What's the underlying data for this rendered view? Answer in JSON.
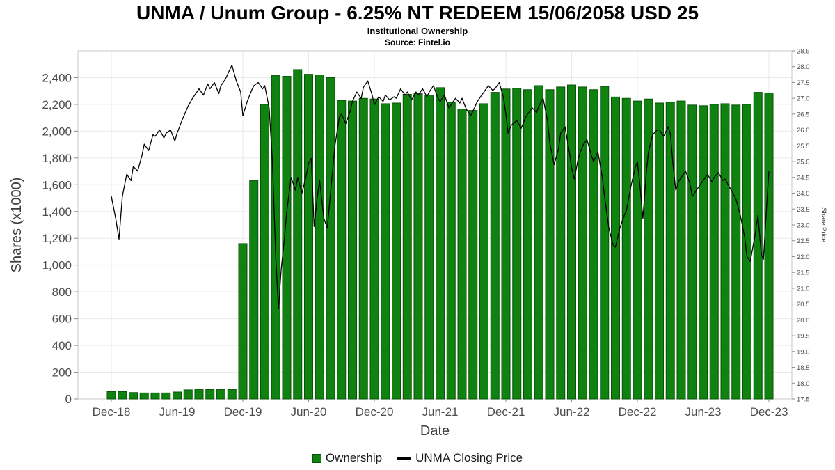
{
  "page": {
    "background": "#ffffff"
  },
  "chart_data": {
    "type": "combo",
    "title": "UNMA / Unum Group - 6.25% NT REDEEM 15/06/2058 USD 25",
    "subtitle": "Institutional Ownership",
    "source": "Source: Fintel.io",
    "grid": true,
    "legend_position": "bottom",
    "colors": {
      "bar_fill": "#0f8210",
      "bar_border": "#0a520a",
      "line": "#000000",
      "grid": "#e9e9e9",
      "plot_border": "#c9c9c9",
      "tick": "#8c8c8c",
      "tick_text": "#4d4d4d",
      "axis_title": "#3d3d3d"
    },
    "x_axis": {
      "label": "Date",
      "tick_indices": [
        0,
        6,
        12,
        18,
        24,
        30,
        36,
        42,
        48,
        54,
        60
      ],
      "tick_labels": [
        "Dec-18",
        "Jun-19",
        "Dec-19",
        "Jun-20",
        "Dec-20",
        "Jun-21",
        "Dec-21",
        "Jun-22",
        "Dec-22",
        "Jun-23",
        "Dec-23"
      ]
    },
    "left_axis": {
      "label": "Shares (x1000)",
      "range": [
        0,
        2600
      ],
      "ticks": [
        0,
        200,
        400,
        600,
        800,
        1000,
        1200,
        1400,
        1600,
        1800,
        2000,
        2200,
        2400
      ],
      "tick_labels": [
        "0",
        "200",
        "400",
        "600",
        "800",
        "1,000",
        "1,200",
        "1,400",
        "1,600",
        "1,800",
        "2,000",
        "2,200",
        "2,400"
      ]
    },
    "right_axis": {
      "label": "Share Price",
      "range": [
        17.5,
        28.5
      ],
      "ticks": [
        17.5,
        18,
        18.5,
        19,
        19.5,
        20,
        20.5,
        21,
        21.5,
        22,
        22.5,
        23,
        23.5,
        24,
        24.5,
        25,
        25.5,
        26,
        26.5,
        27,
        27.5,
        28,
        28.5
      ],
      "tick_labels": [
        "17.5",
        "18.0",
        "18.5",
        "19.0",
        "19.5",
        "20.0",
        "20.5",
        "21.0",
        "21.5",
        "22.0",
        "22.5",
        "23.0",
        "23.5",
        "24.0",
        "24.5",
        "25.0",
        "25.5",
        "26.0",
        "26.5",
        "27.0",
        "27.5",
        "28.0",
        "28.5"
      ]
    },
    "categories": [
      "Dec-18",
      "Jan-19",
      "Feb-19",
      "Mar-19",
      "Apr-19",
      "May-19",
      "Jun-19",
      "Jul-19",
      "Aug-19",
      "Sep-19",
      "Oct-19",
      "Nov-19",
      "Dec-19",
      "Jan-20",
      "Feb-20",
      "Mar-20",
      "Apr-20",
      "May-20",
      "Jun-20",
      "Jul-20",
      "Aug-20",
      "Sep-20",
      "Oct-20",
      "Nov-20",
      "Dec-20",
      "Jan-21",
      "Feb-21",
      "Mar-21",
      "Apr-21",
      "May-21",
      "Jun-21",
      "Jul-21",
      "Aug-21",
      "Sep-21",
      "Oct-21",
      "Nov-21",
      "Dec-21",
      "Jan-22",
      "Feb-22",
      "Mar-22",
      "Apr-22",
      "May-22",
      "Jun-22",
      "Jul-22",
      "Aug-22",
      "Sep-22",
      "Oct-22",
      "Nov-22",
      "Dec-22",
      "Jan-23",
      "Feb-23",
      "Mar-23",
      "Apr-23",
      "May-23",
      "Jun-23",
      "Jul-23",
      "Aug-23",
      "Sep-23",
      "Oct-23",
      "Nov-23",
      "Dec-23"
    ],
    "series": [
      {
        "name": "Ownership",
        "type": "bar",
        "axis": "left",
        "unit": "shares_x1000",
        "values": [
          55,
          55,
          48,
          45,
          45,
          45,
          52,
          68,
          72,
          70,
          70,
          72,
          1160,
          1630,
          2200,
          2415,
          2410,
          2460,
          2425,
          2420,
          2400,
          2230,
          2225,
          2245,
          2240,
          2205,
          2210,
          2275,
          2280,
          2270,
          2325,
          2215,
          2165,
          2155,
          2205,
          2290,
          2315,
          2320,
          2310,
          2340,
          2310,
          2330,
          2345,
          2330,
          2310,
          2335,
          2255,
          2245,
          2225,
          2240,
          2210,
          2215,
          2225,
          2195,
          2190,
          2200,
          2205,
          2195,
          2200,
          2290,
          2285
        ]
      },
      {
        "name": "UNMA Closing Price",
        "type": "line",
        "axis": "right",
        "x_unit": "months_since_Dec-18",
        "points": [
          [
            0,
            23.9
          ],
          [
            0.4,
            23.2
          ],
          [
            0.7,
            22.55
          ],
          [
            1,
            23.9
          ],
          [
            1.4,
            24.6
          ],
          [
            1.8,
            24.4
          ],
          [
            2,
            24.85
          ],
          [
            2.4,
            24.7
          ],
          [
            2.8,
            25.2
          ],
          [
            3,
            25.55
          ],
          [
            3.4,
            25.35
          ],
          [
            3.8,
            25.85
          ],
          [
            4,
            25.8
          ],
          [
            4.4,
            26.0
          ],
          [
            4.8,
            25.75
          ],
          [
            5,
            25.9
          ],
          [
            5.4,
            26.0
          ],
          [
            5.8,
            25.65
          ],
          [
            6,
            25.9
          ],
          [
            6.5,
            26.35
          ],
          [
            7,
            26.75
          ],
          [
            7.4,
            27.0
          ],
          [
            7.8,
            27.2
          ],
          [
            8,
            27.3
          ],
          [
            8.4,
            27.1
          ],
          [
            8.8,
            27.45
          ],
          [
            9,
            27.3
          ],
          [
            9.4,
            27.5
          ],
          [
            9.8,
            27.15
          ],
          [
            10,
            27.4
          ],
          [
            10.4,
            27.6
          ],
          [
            10.8,
            27.9
          ],
          [
            11,
            28.05
          ],
          [
            11.4,
            27.55
          ],
          [
            11.8,
            27.2
          ],
          [
            12,
            26.45
          ],
          [
            12.4,
            26.9
          ],
          [
            12.8,
            27.25
          ],
          [
            13,
            27.4
          ],
          [
            13.4,
            27.5
          ],
          [
            13.8,
            27.3
          ],
          [
            14,
            27.4
          ],
          [
            14.4,
            26.7
          ],
          [
            14.7,
            25.0
          ],
          [
            15,
            22.0
          ],
          [
            15.25,
            20.35
          ],
          [
            15.5,
            21.6
          ],
          [
            15.8,
            22.6
          ],
          [
            16,
            23.4
          ],
          [
            16.4,
            24.5
          ],
          [
            16.8,
            24.1
          ],
          [
            17,
            24.5
          ],
          [
            17.4,
            24.0
          ],
          [
            17.8,
            24.6
          ],
          [
            18,
            24.95
          ],
          [
            18.25,
            25.1
          ],
          [
            18.5,
            22.95
          ],
          [
            18.8,
            23.9
          ],
          [
            19,
            24.4
          ],
          [
            19.4,
            23.2
          ],
          [
            19.7,
            22.9
          ],
          [
            20,
            24.0
          ],
          [
            20.4,
            25.5
          ],
          [
            20.8,
            26.4
          ],
          [
            21,
            26.5
          ],
          [
            21.4,
            26.2
          ],
          [
            21.8,
            26.6
          ],
          [
            22,
            26.9
          ],
          [
            22.4,
            27.2
          ],
          [
            22.8,
            27.0
          ],
          [
            23,
            27.35
          ],
          [
            23.4,
            27.55
          ],
          [
            23.8,
            27.1
          ],
          [
            24,
            26.8
          ],
          [
            24.4,
            27.05
          ],
          [
            24.8,
            26.9
          ],
          [
            25,
            27.1
          ],
          [
            25.4,
            26.95
          ],
          [
            25.8,
            27.05
          ],
          [
            26,
            27.0
          ],
          [
            26.4,
            27.3
          ],
          [
            26.8,
            27.1
          ],
          [
            27,
            27.2
          ],
          [
            27.4,
            26.95
          ],
          [
            27.8,
            27.2
          ],
          [
            28,
            27.1
          ],
          [
            28.4,
            27.3
          ],
          [
            28.8,
            27.05
          ],
          [
            29,
            27.2
          ],
          [
            29.4,
            27.4
          ],
          [
            29.8,
            27.0
          ],
          [
            30,
            26.9
          ],
          [
            30.4,
            27.1
          ],
          [
            30.8,
            26.7
          ],
          [
            31,
            26.8
          ],
          [
            31.4,
            27.0
          ],
          [
            31.8,
            26.85
          ],
          [
            32,
            27.0
          ],
          [
            32.4,
            26.65
          ],
          [
            32.8,
            26.45
          ],
          [
            33,
            26.6
          ],
          [
            33.4,
            26.9
          ],
          [
            33.8,
            27.1
          ],
          [
            34,
            27.2
          ],
          [
            34.4,
            27.4
          ],
          [
            34.8,
            27.25
          ],
          [
            35,
            27.3
          ],
          [
            35.4,
            27.5
          ],
          [
            35.8,
            27.0
          ],
          [
            36,
            26.5
          ],
          [
            36.2,
            25.9
          ],
          [
            36.5,
            26.15
          ],
          [
            37,
            26.3
          ],
          [
            37.4,
            26.05
          ],
          [
            37.8,
            26.4
          ],
          [
            38,
            26.5
          ],
          [
            38.4,
            26.7
          ],
          [
            38.8,
            26.55
          ],
          [
            39,
            26.75
          ],
          [
            39.4,
            27.0
          ],
          [
            39.8,
            26.3
          ],
          [
            40,
            25.6
          ],
          [
            40.4,
            24.9
          ],
          [
            40.8,
            25.4
          ],
          [
            41,
            25.9
          ],
          [
            41.4,
            26.1
          ],
          [
            41.8,
            25.3
          ],
          [
            42,
            24.8
          ],
          [
            42.25,
            24.45
          ],
          [
            42.6,
            25.1
          ],
          [
            43,
            25.5
          ],
          [
            43.4,
            25.7
          ],
          [
            43.8,
            25.2
          ],
          [
            44,
            25.0
          ],
          [
            44.4,
            25.3
          ],
          [
            44.8,
            24.5
          ],
          [
            45,
            23.9
          ],
          [
            45.4,
            22.9
          ],
          [
            45.8,
            22.35
          ],
          [
            46,
            22.3
          ],
          [
            46.4,
            22.9
          ],
          [
            46.8,
            23.3
          ],
          [
            47,
            23.45
          ],
          [
            47.4,
            24.2
          ],
          [
            47.8,
            24.8
          ],
          [
            48,
            25.0
          ],
          [
            48.25,
            24.2
          ],
          [
            48.5,
            23.2
          ],
          [
            48.8,
            24.6
          ],
          [
            49,
            25.3
          ],
          [
            49.4,
            25.85
          ],
          [
            49.8,
            26.0
          ],
          [
            50,
            26.0
          ],
          [
            50.4,
            25.8
          ],
          [
            50.8,
            26.1
          ],
          [
            51,
            25.9
          ],
          [
            51.25,
            24.9
          ],
          [
            51.5,
            24.1
          ],
          [
            51.8,
            24.4
          ],
          [
            52,
            24.5
          ],
          [
            52.4,
            24.7
          ],
          [
            52.8,
            24.3
          ],
          [
            53,
            23.9
          ],
          [
            53.4,
            24.1
          ],
          [
            53.8,
            24.3
          ],
          [
            54,
            24.4
          ],
          [
            54.4,
            24.6
          ],
          [
            54.8,
            24.35
          ],
          [
            55,
            24.5
          ],
          [
            55.4,
            24.65
          ],
          [
            55.8,
            24.4
          ],
          [
            56,
            24.45
          ],
          [
            56.4,
            24.2
          ],
          [
            56.8,
            23.95
          ],
          [
            57,
            23.8
          ],
          [
            57.4,
            23.3
          ],
          [
            57.8,
            22.6
          ],
          [
            58,
            22.0
          ],
          [
            58.3,
            21.85
          ],
          [
            58.7,
            22.6
          ],
          [
            59,
            23.3
          ],
          [
            59.3,
            22.1
          ],
          [
            59.5,
            21.9
          ],
          [
            59.8,
            23.6
          ],
          [
            60,
            24.7
          ]
        ]
      }
    ],
    "legend": {
      "items": [
        {
          "label": "Ownership",
          "marker": "bar"
        },
        {
          "label": "UNMA Closing Price",
          "marker": "line"
        }
      ]
    }
  }
}
